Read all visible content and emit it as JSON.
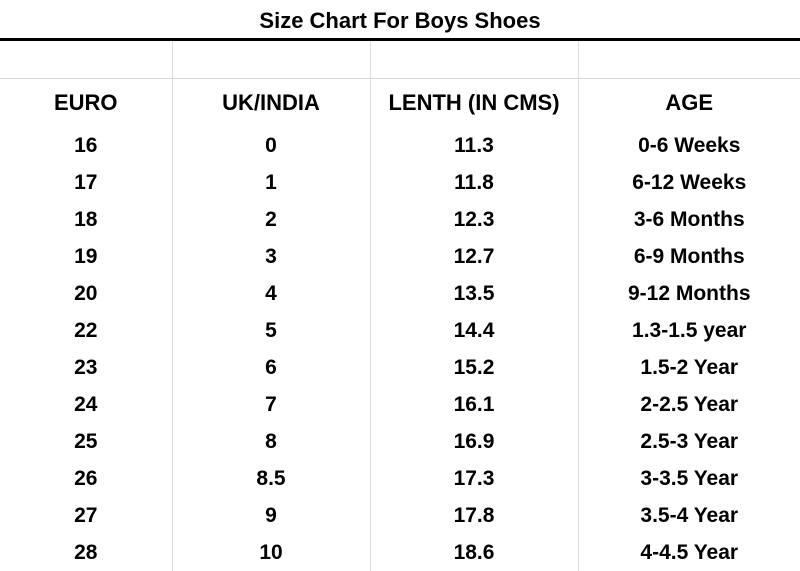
{
  "title": "Size Chart For Boys Shoes",
  "columns": [
    "EURO",
    "UK/INDIA",
    "LENTH (IN CMS)",
    "AGE"
  ],
  "rows": [
    [
      "16",
      "0",
      "11.3",
      "0-6 Weeks"
    ],
    [
      "17",
      "1",
      "11.8",
      "6-12 Weeks"
    ],
    [
      "18",
      "2",
      "12.3",
      "3-6 Months"
    ],
    [
      "19",
      "3",
      "12.7",
      "6-9 Months"
    ],
    [
      "20",
      "4",
      "13.5",
      "9-12 Months"
    ],
    [
      "22",
      "5",
      "14.4",
      "1.3-1.5 year"
    ],
    [
      "23",
      "6",
      "15.2",
      "1.5-2 Year"
    ],
    [
      "24",
      "7",
      "16.1",
      "2-2.5 Year"
    ],
    [
      "25",
      "8",
      "16.9",
      "2.5-3 Year"
    ],
    [
      "26",
      "8.5",
      "17.3",
      "3-3.5 Year"
    ],
    [
      "27",
      "9",
      "17.8",
      "3.5-4 Year"
    ],
    [
      "28",
      "10",
      "18.6",
      "4-4.5 Year"
    ]
  ]
}
